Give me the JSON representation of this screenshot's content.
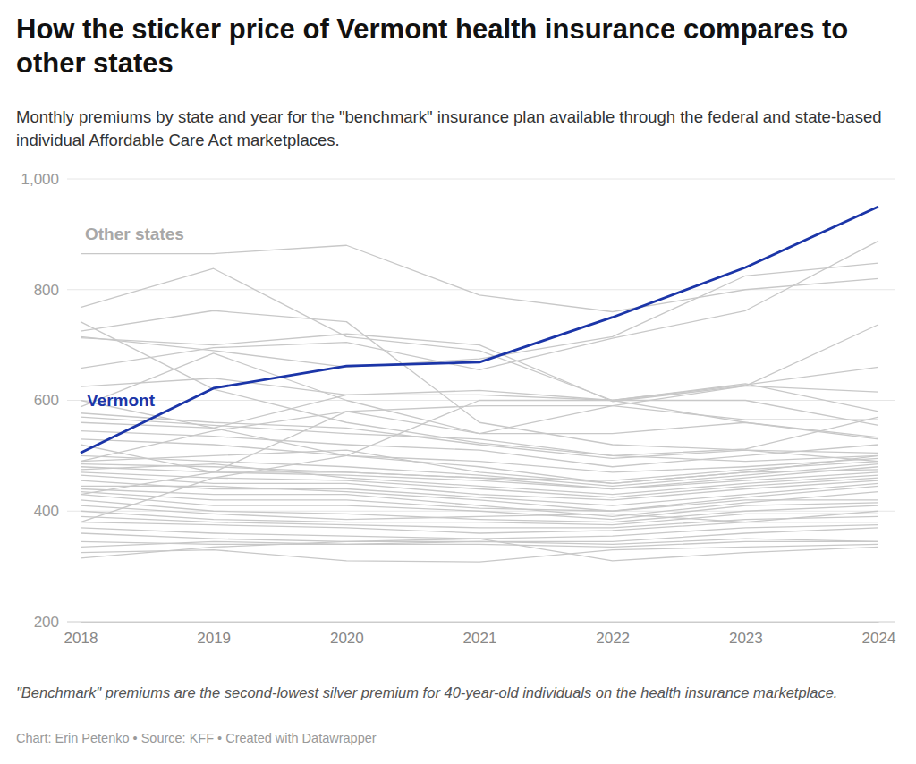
{
  "chart_data": {
    "type": "line",
    "title": "How the sticker price of Vermont health insurance compares to other states",
    "subtitle": "Monthly premiums by state and year for the \"benchmark\" insurance plan available through the federal and state-based individual Affordable Care Act marketplaces.",
    "note": "\"Benchmark\" premiums are the second-lowest silver premium for 40-year-old individuals on the health insurance marketplace.",
    "source": "Chart: Erin Petenko • Source: KFF • Created with Datawrapper",
    "annotations": [
      "Other states"
    ],
    "x": [
      2018,
      2019,
      2020,
      2021,
      2022,
      2023,
      2024
    ],
    "xlim": [
      2018,
      2024
    ],
    "xticks": [
      2018,
      2019,
      2020,
      2021,
      2022,
      2023,
      2024
    ],
    "ylim": [
      200,
      1000
    ],
    "yticks": [
      200,
      400,
      600,
      800,
      {
        "value": 1000,
        "label": "1,000"
      }
    ],
    "grid": true,
    "series": [
      {
        "color": "#c8c8c8",
        "values": [
          865,
          865,
          880,
          790,
          760,
          800,
          820
        ]
      },
      {
        "color": "#c8c8c8",
        "values": [
          768,
          838,
          715,
          690,
          600,
          560,
          533
        ]
      },
      {
        "color": "#c8c8c8",
        "values": [
          742,
          620,
          560,
          523,
          500,
          490,
          500
        ]
      },
      {
        "color": "#c8c8c8",
        "values": [
          725,
          762,
          742,
          560,
          520,
          510,
          490
        ]
      },
      {
        "color": "#c8c8c8",
        "values": [
          713,
          700,
          720,
          700,
          598,
          626,
          615
        ]
      },
      {
        "color": "#c8c8c8",
        "values": [
          658,
          695,
          705,
          655,
          712,
          762,
          888
        ]
      },
      {
        "color": "#c8c8c8",
        "values": [
          588,
          685,
          600,
          540,
          590,
          626,
          737
        ]
      },
      {
        "color": "#c8c8c8",
        "values": [
          625,
          640,
          610,
          618,
          600,
          628,
          660
        ]
      },
      {
        "color": "#c8c8c8",
        "values": [
          715,
          690,
          660,
          675,
          715,
          825,
          848
        ]
      },
      {
        "color": "#c8c8c8",
        "values": [
          577,
          560,
          550,
          520,
          495,
          510,
          505
        ]
      },
      {
        "color": "#c8c8c8",
        "values": [
          570,
          555,
          540,
          530,
          500,
          512,
          570
        ]
      },
      {
        "color": "#c8c8c8",
        "values": [
          560,
          550,
          500,
          480,
          450,
          470,
          500
        ]
      },
      {
        "color": "#c8c8c8",
        "values": [
          545,
          535,
          520,
          510,
          480,
          500,
          520
        ]
      },
      {
        "color": "#c8c8c8",
        "values": [
          530,
          520,
          500,
          490,
          470,
          480,
          495
        ]
      },
      {
        "color": "#c8c8c8",
        "values": [
          520,
          470,
          470,
          460,
          440,
          460,
          480
        ]
      },
      {
        "color": "#c8c8c8",
        "values": [
          500,
          490,
          480,
          465,
          445,
          465,
          485
        ]
      },
      {
        "color": "#c8c8c8",
        "values": [
          490,
          500,
          510,
          470,
          450,
          470,
          475
        ]
      },
      {
        "color": "#c8c8c8",
        "values": [
          485,
          480,
          470,
          460,
          455,
          475,
          490
        ]
      },
      {
        "color": "#c8c8c8",
        "values": [
          480,
          470,
          465,
          455,
          440,
          455,
          470
        ]
      },
      {
        "color": "#c8c8c8",
        "values": [
          475,
          485,
          460,
          445,
          430,
          450,
          465
        ]
      },
      {
        "color": "#c8c8c8",
        "values": [
          470,
          460,
          455,
          440,
          425,
          445,
          460
        ]
      },
      {
        "color": "#c8c8c8",
        "values": [
          465,
          450,
          450,
          430,
          420,
          440,
          455
        ]
      },
      {
        "color": "#c8c8c8",
        "values": [
          455,
          440,
          440,
          425,
          410,
          430,
          450
        ]
      },
      {
        "color": "#c8c8c8",
        "values": [
          445,
          445,
          435,
          420,
          400,
          425,
          445
        ]
      },
      {
        "color": "#c8c8c8",
        "values": [
          440,
          430,
          430,
          410,
          390,
          415,
          435
        ]
      },
      {
        "color": "#c8c8c8",
        "values": [
          435,
          420,
          420,
          405,
          400,
          420,
          420
        ]
      },
      {
        "color": "#c8c8c8",
        "values": [
          430,
          410,
          410,
          400,
          385,
          410,
          415
        ]
      },
      {
        "color": "#c8c8c8",
        "values": [
          420,
          400,
          395,
          385,
          380,
          400,
          410
        ]
      },
      {
        "color": "#c8c8c8",
        "values": [
          410,
          395,
          385,
          390,
          395,
          380,
          400
        ]
      },
      {
        "color": "#c8c8c8",
        "values": [
          400,
          385,
          380,
          380,
          375,
          395,
          395
        ]
      },
      {
        "color": "#c8c8c8",
        "values": [
          390,
          380,
          375,
          370,
          370,
          385,
          390
        ]
      },
      {
        "color": "#c8c8c8",
        "values": [
          380,
          375,
          370,
          360,
          365,
          380,
          380
        ]
      },
      {
        "color": "#c8c8c8",
        "values": [
          370,
          360,
          355,
          350,
          355,
          370,
          375
        ]
      },
      {
        "color": "#c8c8c8",
        "values": [
          360,
          350,
          345,
          345,
          345,
          360,
          370
        ]
      },
      {
        "color": "#c8c8c8",
        "values": [
          345,
          340,
          340,
          345,
          340,
          350,
          345
        ]
      },
      {
        "color": "#c8c8c8",
        "values": [
          335,
          345,
          340,
          340,
          335,
          345,
          345
        ]
      },
      {
        "color": "#c8c8c8",
        "values": [
          325,
          330,
          310,
          308,
          330,
          335,
          340
        ]
      },
      {
        "color": "#c8c8c8",
        "values": [
          315,
          335,
          345,
          350,
          310,
          325,
          335
        ]
      },
      {
        "color": "#c8c8c8",
        "values": [
          380,
          460,
          500,
          600,
          600,
          630,
          580
        ]
      },
      {
        "color": "#c8c8c8",
        "values": [
          490,
          545,
          580,
          590,
          590,
          565,
          565
        ]
      },
      {
        "color": "#c8c8c8",
        "values": [
          430,
          470,
          580,
          540,
          540,
          560,
          530
        ]
      },
      {
        "color": "#c8c8c8",
        "values": [
          600,
          550,
          610,
          610,
          600,
          600,
          555
        ]
      },
      {
        "name": "Vermont",
        "color": "#1b35a8",
        "values": [
          505,
          622,
          662,
          669,
          750,
          840,
          950
        ]
      }
    ]
  }
}
